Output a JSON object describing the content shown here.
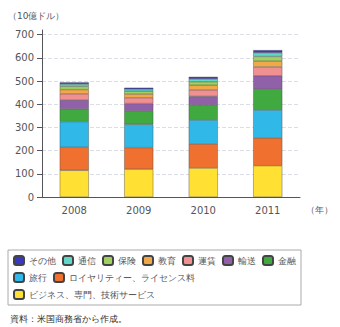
{
  "chart_data": {
    "type": "bar",
    "stacked": true,
    "categories": [
      "2008",
      "2009",
      "2010",
      "2011"
    ],
    "series": [
      {
        "name": "ビジネス、専門、技術サービス",
        "color": "#FFE033",
        "values": [
          115,
          120,
          125,
          135
        ]
      },
      {
        "name": "ロイヤリティー、ライセンス料",
        "color": "#F07030",
        "values": [
          100,
          93,
          104,
          120
        ]
      },
      {
        "name": "旅行",
        "color": "#30B8E8",
        "values": [
          110,
          100,
          103,
          120
        ]
      },
      {
        "name": "金融",
        "color": "#40AA40",
        "values": [
          55,
          58,
          65,
          90
        ]
      },
      {
        "name": "輸送",
        "color": "#9060A8",
        "values": [
          38,
          32,
          37,
          58
        ]
      },
      {
        "name": "運賃",
        "color": "#F09090",
        "values": [
          27,
          25,
          28,
          38
        ]
      },
      {
        "name": "教育",
        "color": "#F0A848",
        "values": [
          18,
          16,
          20,
          25
        ]
      },
      {
        "name": "保険",
        "color": "#A0D060",
        "values": [
          14,
          12,
          15,
          20
        ]
      },
      {
        "name": "通信",
        "color": "#60D8C8",
        "values": [
          10,
          9,
          12,
          16
        ]
      },
      {
        "name": "その他",
        "color": "#3838C0",
        "values": [
          7,
          6,
          9,
          11
        ]
      }
    ],
    "ylabel": "（10億ドル）",
    "xlabel": "（年）",
    "ylim": [
      0,
      720
    ],
    "yticks": [
      0,
      100,
      200,
      300,
      400,
      500,
      600,
      700
    ],
    "grid": true,
    "legend": "bottom",
    "annotations": [
      "資料：米国商務省から作成。"
    ]
  }
}
